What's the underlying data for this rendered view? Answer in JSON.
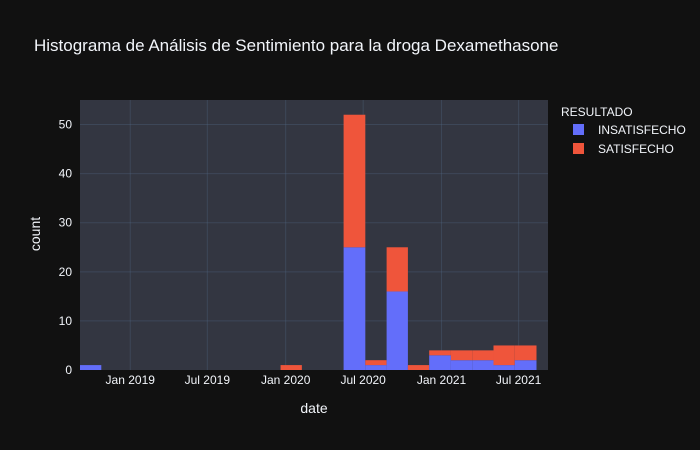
{
  "chart_data": {
    "type": "bar",
    "mode": "stacked",
    "title": "Histograma de Análisis de Sentimiento para la droga Dexamethasone",
    "xlabel": "date",
    "ylabel": "count",
    "x_range": [
      "2018-09-05",
      "2021-09-08"
    ],
    "ylim": [
      0,
      55
    ],
    "yticks": [
      0,
      10,
      20,
      30,
      40,
      50
    ],
    "xticks": [
      {
        "date": "2019-01-01",
        "label": "Jan 2019"
      },
      {
        "date": "2019-07-01",
        "label": "Jul 2019"
      },
      {
        "date": "2020-01-01",
        "label": "Jan 2020"
      },
      {
        "date": "2020-07-01",
        "label": "Jul 2020"
      },
      {
        "date": "2021-01-01",
        "label": "Jan 2021"
      },
      {
        "date": "2021-07-01",
        "label": "Jul 2021"
      }
    ],
    "bins": [
      {
        "start": "2018-09-05",
        "end": "2018-10-25"
      },
      {
        "start": "2019-12-20",
        "end": "2020-02-08"
      },
      {
        "start": "2020-05-16",
        "end": "2020-07-06"
      },
      {
        "start": "2020-07-06",
        "end": "2020-08-25"
      },
      {
        "start": "2020-08-25",
        "end": "2020-10-14"
      },
      {
        "start": "2020-10-14",
        "end": "2020-12-03"
      },
      {
        "start": "2020-12-03",
        "end": "2021-01-23"
      },
      {
        "start": "2021-01-23",
        "end": "2021-03-14"
      },
      {
        "start": "2021-03-14",
        "end": "2021-05-03"
      },
      {
        "start": "2021-05-03",
        "end": "2021-06-22"
      },
      {
        "start": "2021-06-22",
        "end": "2021-08-12"
      }
    ],
    "series": [
      {
        "name": "INSATISFECHO",
        "color": "#636efa",
        "values": [
          1,
          0,
          25,
          1,
          16,
          0,
          3,
          2,
          2,
          1,
          2
        ]
      },
      {
        "name": "SATISFECHO",
        "color": "#ef553b",
        "values": [
          0,
          1,
          27,
          1,
          9,
          1,
          1,
          2,
          2,
          4,
          3
        ]
      }
    ],
    "legend": {
      "title": "RESULTADO",
      "position": "top-right"
    },
    "plot_background": "#333641",
    "paper_background": "#111111",
    "grid": true
  }
}
